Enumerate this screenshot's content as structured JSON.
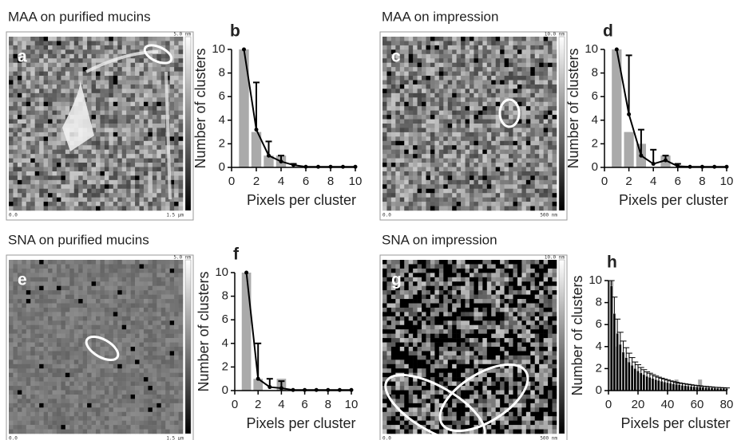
{
  "panels": [
    {
      "caption": "MAA on purified mucins",
      "letter": "a",
      "scale_max": "5.0 nm",
      "origin": "0.0",
      "scale_length": "1.5 µm"
    },
    {
      "caption": "MAA on impression",
      "letter": "c",
      "scale_max": "10.0 nm",
      "origin": "0.0",
      "scale_length": "500 nm"
    },
    {
      "caption": "SNA on purified mucins",
      "letter": "e",
      "scale_max": "5.0 nm",
      "origin": "0.0",
      "scale_length": "1.5 µm"
    },
    {
      "caption": "SNA on impression",
      "letter": "g",
      "scale_max": "10.0 nm",
      "origin": "0.0",
      "scale_length": "500 nm"
    }
  ],
  "chart_data": [
    {
      "type": "bar",
      "label": "b",
      "xlabel": "Pixels per cluster",
      "ylabel": "Number of clusters",
      "xlim": [
        0,
        10
      ],
      "xticks": [
        0,
        2,
        4,
        6,
        8,
        10
      ],
      "ylim": [
        0,
        10
      ],
      "yticks": [
        0,
        2,
        4,
        6,
        8,
        10
      ],
      "bar_color": "#aaaaaa",
      "point_color": "#000000",
      "point_style": "dot",
      "bars": {
        "x": [
          1,
          2,
          3,
          4
        ],
        "values": [
          10,
          3,
          1,
          1
        ]
      },
      "points": {
        "x": [
          1,
          2,
          3,
          4,
          5,
          6,
          7,
          8,
          9,
          10
        ],
        "values": [
          10,
          3.2,
          1,
          0.5,
          0.2,
          0.05,
          0.05,
          0.05,
          0.05,
          0.05
        ],
        "errors": [
          0,
          4,
          1.2,
          0.5,
          0.1,
          0,
          0,
          0,
          0,
          0
        ]
      }
    },
    {
      "type": "bar",
      "label": "d",
      "xlabel": "Pixels per cluster",
      "ylabel": "Number of clusters",
      "xlim": [
        0,
        10
      ],
      "xticks": [
        0,
        2,
        4,
        6,
        8,
        10
      ],
      "ylim": [
        0,
        10
      ],
      "yticks": [
        0,
        2,
        4,
        6,
        8,
        10
      ],
      "bar_color": "#aaaaaa",
      "point_color": "#000000",
      "point_style": "dot",
      "bars": {
        "x": [
          1,
          2,
          3,
          5
        ],
        "values": [
          10,
          3,
          2,
          1
        ]
      },
      "points": {
        "x": [
          1,
          2,
          3,
          4,
          5,
          6,
          7,
          8,
          9,
          10
        ],
        "values": [
          10,
          4.5,
          1,
          0.3,
          0.6,
          0.1,
          0.05,
          0.05,
          0.05,
          0.05
        ],
        "errors": [
          0,
          5,
          2.2,
          1.2,
          0.4,
          0.2,
          0,
          0,
          0,
          0
        ]
      }
    },
    {
      "type": "bar",
      "label": "f",
      "xlabel": "Pixels per cluster",
      "ylabel": "Number of clusters",
      "xlim": [
        0,
        10
      ],
      "xticks": [
        0,
        2,
        4,
        6,
        8,
        10
      ],
      "ylim": [
        0,
        10
      ],
      "yticks": [
        0,
        2,
        4,
        6,
        8,
        10
      ],
      "bar_color": "#aaaaaa",
      "point_color": "#000000",
      "point_style": "dot",
      "bars": {
        "x": [
          1,
          2,
          4
        ],
        "values": [
          10,
          1,
          1
        ]
      },
      "points": {
        "x": [
          1,
          2,
          3,
          4,
          5,
          6,
          7,
          8,
          9,
          10
        ],
        "values": [
          10,
          1,
          0.3,
          0.2,
          0.05,
          0.05,
          0.05,
          0.05,
          0.05,
          0.05
        ],
        "errors": [
          0,
          3,
          0.7,
          0.6,
          0,
          0,
          0,
          0,
          0,
          0
        ]
      }
    },
    {
      "type": "bar",
      "label": "h",
      "xlabel": "Pixels per cluster",
      "ylabel": "Number of clusters",
      "xlim": [
        0,
        80
      ],
      "xticks": [
        0,
        20,
        40,
        60,
        80
      ],
      "ylim": [
        0,
        10
      ],
      "yticks": [
        0,
        2,
        4,
        6,
        8,
        10
      ],
      "bar_color": "#aaaaaa",
      "point_color": "#000000",
      "point_style": "bar",
      "bars": {
        "x": [
          1,
          2,
          3,
          4,
          46,
          62
        ],
        "values": [
          10,
          10,
          6,
          4,
          1,
          1
        ]
      },
      "points": {
        "x": [
          2,
          4,
          6,
          8,
          10,
          12,
          14,
          16,
          18,
          20,
          22,
          24,
          26,
          28,
          30,
          32,
          34,
          36,
          38,
          40,
          42,
          44,
          46,
          48,
          50,
          52,
          54,
          56,
          58,
          60,
          62,
          64,
          66,
          68,
          70,
          72,
          74,
          76,
          78,
          80
        ],
        "values": [
          9.5,
          7,
          5.2,
          4.2,
          3.5,
          3,
          2.6,
          2.3,
          2,
          1.8,
          1.6,
          1.45,
          1.3,
          1.2,
          1.1,
          1,
          0.92,
          0.85,
          0.78,
          0.72,
          0.66,
          0.61,
          0.56,
          0.52,
          0.48,
          0.45,
          0.42,
          0.39,
          0.36,
          0.34,
          0.32,
          0.3,
          0.28,
          0.26,
          0.24,
          0.22,
          0.21,
          0.2,
          0.19,
          0.18
        ],
        "errors": [
          0.5,
          1.5,
          1.3,
          1.1,
          1,
          0.9,
          0.8,
          0.7,
          0.6,
          0.55,
          0.5,
          0.45,
          0.4,
          0.38,
          0.35,
          0.32,
          0.3,
          0.28,
          0.26,
          0.24,
          0.22,
          0.2,
          0.19,
          0.18,
          0.17,
          0.16,
          0.15,
          0.14,
          0.13,
          0.12,
          0.11,
          0.1,
          0.1,
          0.09,
          0.09,
          0.08,
          0.08,
          0.07,
          0.07,
          0.06
        ]
      }
    }
  ]
}
